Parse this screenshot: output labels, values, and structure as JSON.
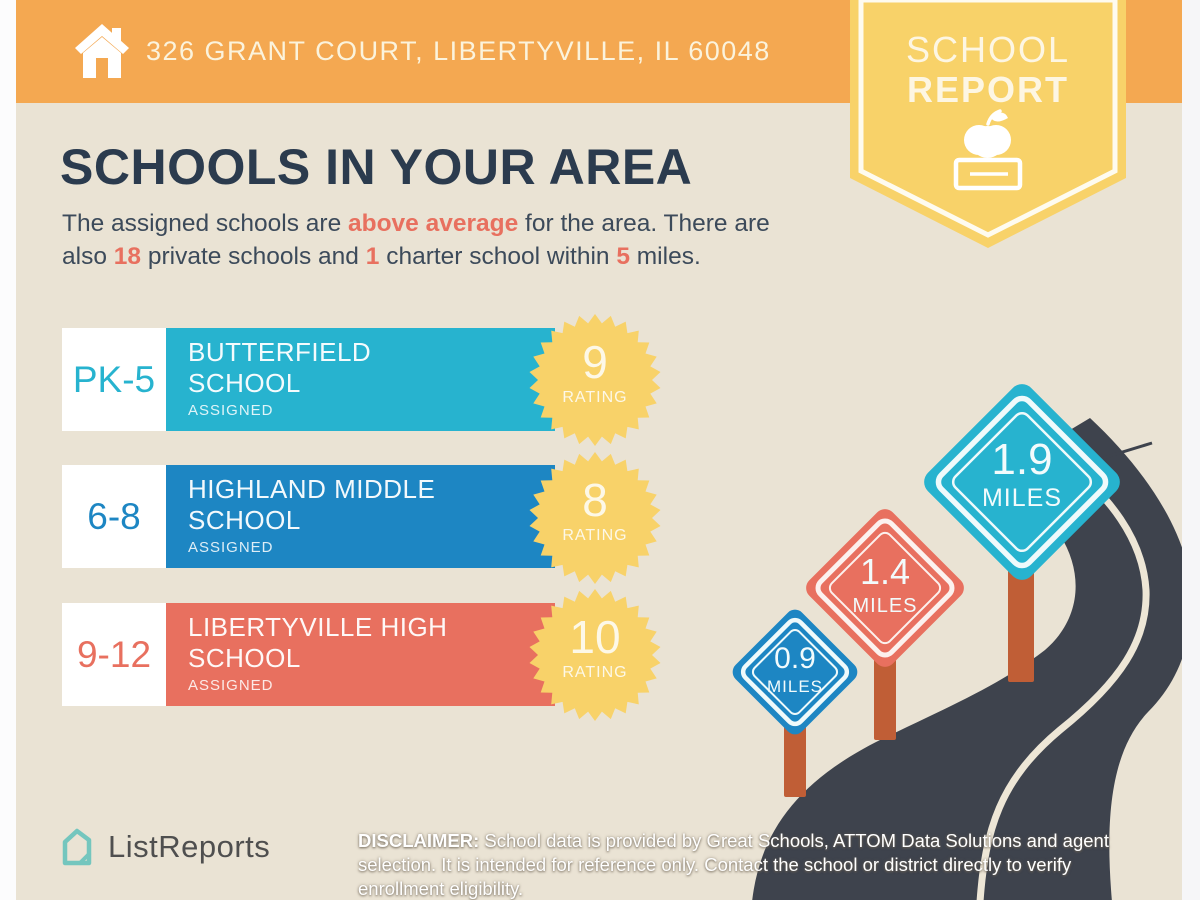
{
  "palette": {
    "background": "#EAE3D4",
    "header_orange": "#F4A851",
    "badge_yellow": "#F8D269",
    "navy": "#2B3B4E",
    "highlight_red": "#E8705F",
    "cyan": "#27B3CF",
    "blue": "#1D86C3",
    "seal_yellow": "#F8D269",
    "road_dark": "#3E434D",
    "road_line_cream": "#EDE6D6",
    "post_brown": "#C05E36",
    "logo_teal": "#74C6BE"
  },
  "header": {
    "address": "326 GRANT COURT, LIBERTYVILLE, IL 60048"
  },
  "badge": {
    "line1": "SCHOOL",
    "line2": "REPORT"
  },
  "title": "SCHOOLS IN YOUR AREA",
  "subtitle": {
    "t1": "The assigned schools are ",
    "h1": "above average",
    "t2": " for the area. There are also ",
    "h2": "18",
    "t3": " private schools and ",
    "h3": "1",
    "t4": " charter school within ",
    "h4": "5",
    "t5": " miles."
  },
  "schools": [
    {
      "grade": "PK-5",
      "name_line1": "BUTTERFIELD",
      "name_line2": "SCHOOL",
      "status": "ASSIGNED",
      "rating": "9",
      "rating_label": "RATING",
      "color": "#27B3CF"
    },
    {
      "grade": "6-8",
      "name_line1": "HIGHLAND MIDDLE",
      "name_line2": "SCHOOL",
      "status": "ASSIGNED",
      "rating": "8",
      "rating_label": "RATING",
      "color": "#1D86C3"
    },
    {
      "grade": "9-12",
      "name_line1": "LIBERTYVILLE HIGH",
      "name_line2": "SCHOOL",
      "status": "ASSIGNED",
      "rating": "10",
      "rating_label": "RATING",
      "color": "#E8705F"
    }
  ],
  "distance_signs": [
    {
      "value": "0.9",
      "unit": "MILES",
      "color": "#1D86C3"
    },
    {
      "value": "1.4",
      "unit": "MILES",
      "color": "#E8705F"
    },
    {
      "value": "1.9",
      "unit": "MILES",
      "color": "#27B3CF"
    }
  ],
  "footer": {
    "brand": "ListReports",
    "disclaimer_label": "DISCLAIMER:",
    "disclaimer_text": " School data is provided by Great Schools, ATTOM Data Solutions and agent selection. It is intended for reference only. Contact the school or district directly to verify enrollment eligibility."
  }
}
